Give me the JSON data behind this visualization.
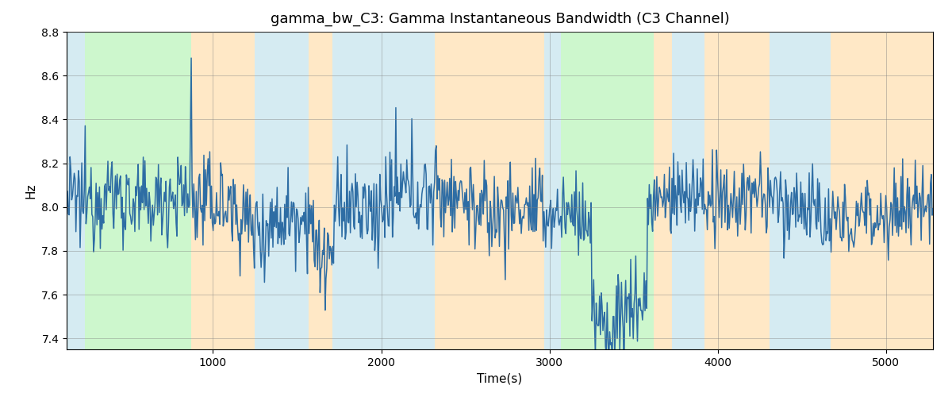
{
  "title": "gamma_bw_C3: Gamma Instantaneous Bandwidth (C3 Channel)",
  "xlabel": "Time(s)",
  "ylabel": "Hz",
  "xlim": [
    130,
    5280
  ],
  "ylim": [
    7.35,
    8.75
  ],
  "yticks": [
    7.4,
    7.6,
    7.8,
    8.0,
    8.2,
    8.4,
    8.6,
    8.8
  ],
  "xticks": [
    1000,
    2000,
    3000,
    4000,
    5000
  ],
  "line_color": "#2e6da4",
  "line_width": 1.1,
  "bg_regions": [
    {
      "xmin": 130,
      "xmax": 240,
      "color": "#add8e6",
      "alpha": 0.5
    },
    {
      "xmin": 240,
      "xmax": 870,
      "color": "#90ee90",
      "alpha": 0.45
    },
    {
      "xmin": 870,
      "xmax": 1250,
      "color": "#ffd9a0",
      "alpha": 0.6
    },
    {
      "xmin": 1250,
      "xmax": 1570,
      "color": "#add8e6",
      "alpha": 0.5
    },
    {
      "xmin": 1570,
      "xmax": 1710,
      "color": "#ffd9a0",
      "alpha": 0.6
    },
    {
      "xmin": 1710,
      "xmax": 2320,
      "color": "#add8e6",
      "alpha": 0.5
    },
    {
      "xmin": 2320,
      "xmax": 2970,
      "color": "#ffd9a0",
      "alpha": 0.6
    },
    {
      "xmin": 2970,
      "xmax": 3070,
      "color": "#add8e6",
      "alpha": 0.5
    },
    {
      "xmin": 3070,
      "xmax": 3620,
      "color": "#90ee90",
      "alpha": 0.45
    },
    {
      "xmin": 3620,
      "xmax": 3730,
      "color": "#ffd9a0",
      "alpha": 0.6
    },
    {
      "xmin": 3730,
      "xmax": 3920,
      "color": "#add8e6",
      "alpha": 0.5
    },
    {
      "xmin": 3920,
      "xmax": 4310,
      "color": "#ffd9a0",
      "alpha": 0.6
    },
    {
      "xmin": 4310,
      "xmax": 4670,
      "color": "#add8e6",
      "alpha": 0.5
    },
    {
      "xmin": 4670,
      "xmax": 5280,
      "color": "#ffd9a0",
      "alpha": 0.6
    }
  ],
  "seed": 12345,
  "n_points": 1030,
  "base_value": 8.0,
  "noise_std": 0.105,
  "figsize": [
    12.0,
    5.0
  ],
  "dpi": 100
}
